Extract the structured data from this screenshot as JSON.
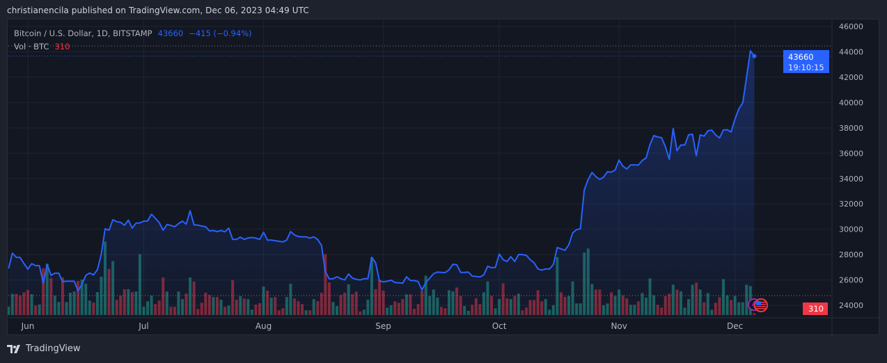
{
  "header": {
    "published_text": "christianencila published on TradingView.com, Dec 06, 2023 04:49 UTC"
  },
  "legend": {
    "symbol": "Bitcoin / U.S. Dollar, 1D, BITSTAMP",
    "last": "43660",
    "change": "−415 (−0.94%)",
    "volume_label": "Vol · BTC",
    "volume_value": "310"
  },
  "price_label": {
    "value": "43660",
    "countdown": "19:10:15"
  },
  "volume_badge": "310",
  "footer": {
    "brand": "TradingView"
  },
  "colors": {
    "line": "#2962ff",
    "up_volume": "#22ab94",
    "down_volume": "#f23645",
    "background": "#131722",
    "price_badge": "#2962ff",
    "volume_badge": "#f23645"
  },
  "icons": [
    "earnings-event-icon",
    "us-flag-economic-event-icon",
    "tradingview-logo-icon"
  ],
  "chart_data": {
    "type": "area",
    "title": "Bitcoin / U.S. Dollar, 1D, BITSTAMP",
    "ylim": [
      23000,
      47000
    ],
    "y_ticks": [
      "46000",
      "44000",
      "42000",
      "40000",
      "38000",
      "36000",
      "34000",
      "32000",
      "30000",
      "28000",
      "26000",
      "24000"
    ],
    "x_ticks": [
      {
        "label": "Jun",
        "date": "2023-06-01"
      },
      {
        "label": "Jul",
        "date": "2023-07-01"
      },
      {
        "label": "Aug",
        "date": "2023-08-01"
      },
      {
        "label": "Sep",
        "date": "2023-09-01"
      },
      {
        "label": "Oct",
        "date": "2023-10-01"
      },
      {
        "label": "Nov",
        "date": "2023-11-01"
      },
      {
        "label": "Dec",
        "date": "2023-12-01"
      }
    ],
    "grid": true,
    "series": [
      {
        "name": "Bitcoin / U.S. Dollar",
        "type": "line",
        "x": [
          "2023-05-27",
          "2023-05-28",
          "2023-05-29",
          "2023-05-30",
          "2023-05-31",
          "2023-06-01",
          "2023-06-02",
          "2023-06-03",
          "2023-06-04",
          "2023-06-05",
          "2023-06-06",
          "2023-06-07",
          "2023-06-08",
          "2023-06-09",
          "2023-06-10",
          "2023-06-11",
          "2023-06-12",
          "2023-06-13",
          "2023-06-14",
          "2023-06-15",
          "2023-06-16",
          "2023-06-17",
          "2023-06-18",
          "2023-06-19",
          "2023-06-20",
          "2023-06-21",
          "2023-06-22",
          "2023-06-23",
          "2023-06-24",
          "2023-06-25",
          "2023-06-26",
          "2023-06-27",
          "2023-06-28",
          "2023-06-29",
          "2023-06-30",
          "2023-07-01",
          "2023-07-02",
          "2023-07-03",
          "2023-07-04",
          "2023-07-05",
          "2023-07-06",
          "2023-07-07",
          "2023-07-08",
          "2023-07-09",
          "2023-07-10",
          "2023-07-11",
          "2023-07-12",
          "2023-07-13",
          "2023-07-14",
          "2023-07-15",
          "2023-07-16",
          "2023-07-17",
          "2023-07-18",
          "2023-07-19",
          "2023-07-20",
          "2023-07-21",
          "2023-07-22",
          "2023-07-23",
          "2023-07-24",
          "2023-07-25",
          "2023-07-26",
          "2023-07-27",
          "2023-07-28",
          "2023-07-29",
          "2023-07-30",
          "2023-07-31",
          "2023-08-01",
          "2023-08-02",
          "2023-08-03",
          "2023-08-04",
          "2023-08-05",
          "2023-08-06",
          "2023-08-07",
          "2023-08-08",
          "2023-08-09",
          "2023-08-10",
          "2023-08-11",
          "2023-08-12",
          "2023-08-13",
          "2023-08-14",
          "2023-08-15",
          "2023-08-16",
          "2023-08-17",
          "2023-08-18",
          "2023-08-19",
          "2023-08-20",
          "2023-08-21",
          "2023-08-22",
          "2023-08-23",
          "2023-08-24",
          "2023-08-25",
          "2023-08-26",
          "2023-08-27",
          "2023-08-28",
          "2023-08-29",
          "2023-08-30",
          "2023-08-31",
          "2023-09-01",
          "2023-09-02",
          "2023-09-03",
          "2023-09-04",
          "2023-09-05",
          "2023-09-06",
          "2023-09-07",
          "2023-09-08",
          "2023-09-09",
          "2023-09-10",
          "2023-09-11",
          "2023-09-12",
          "2023-09-13",
          "2023-09-14",
          "2023-09-15",
          "2023-09-16",
          "2023-09-17",
          "2023-09-18",
          "2023-09-19",
          "2023-09-20",
          "2023-09-21",
          "2023-09-22",
          "2023-09-23",
          "2023-09-24",
          "2023-09-25",
          "2023-09-26",
          "2023-09-27",
          "2023-09-28",
          "2023-09-29",
          "2023-09-30",
          "2023-10-01",
          "2023-10-02",
          "2023-10-03",
          "2023-10-04",
          "2023-10-05",
          "2023-10-06",
          "2023-10-07",
          "2023-10-08",
          "2023-10-09",
          "2023-10-10",
          "2023-10-11",
          "2023-10-12",
          "2023-10-13",
          "2023-10-14",
          "2023-10-15",
          "2023-10-16",
          "2023-10-17",
          "2023-10-18",
          "2023-10-19",
          "2023-10-20",
          "2023-10-21",
          "2023-10-22",
          "2023-10-23",
          "2023-10-24",
          "2023-10-25",
          "2023-10-26",
          "2023-10-27",
          "2023-10-28",
          "2023-10-29",
          "2023-10-30",
          "2023-10-31",
          "2023-11-01",
          "2023-11-02",
          "2023-11-03",
          "2023-11-04",
          "2023-11-05",
          "2023-11-06",
          "2023-11-07",
          "2023-11-08",
          "2023-11-09",
          "2023-11-10",
          "2023-11-11",
          "2023-11-12",
          "2023-11-13",
          "2023-11-14",
          "2023-11-15",
          "2023-11-16",
          "2023-11-17",
          "2023-11-18",
          "2023-11-19",
          "2023-11-20",
          "2023-11-21",
          "2023-11-22",
          "2023-11-23",
          "2023-11-24",
          "2023-11-25",
          "2023-11-26",
          "2023-11-27",
          "2023-11-28",
          "2023-11-29",
          "2023-11-30",
          "2023-12-01",
          "2023-12-02",
          "2023-12-03",
          "2023-12-04",
          "2023-12-05",
          "2023-12-06"
        ],
        "values": [
          26910,
          28120,
          27790,
          27770,
          27290,
          26850,
          27290,
          27130,
          27130,
          25760,
          27220,
          26360,
          26530,
          26530,
          25870,
          25900,
          25900,
          25900,
          25150,
          25650,
          26360,
          26550,
          26400,
          26800,
          28010,
          30040,
          29930,
          30750,
          30600,
          30550,
          30310,
          30720,
          30090,
          30480,
          30500,
          30640,
          30650,
          31190,
          30860,
          30530,
          29930,
          30370,
          30300,
          30200,
          30450,
          30640,
          30400,
          31460,
          30350,
          30320,
          30250,
          30200,
          29870,
          29900,
          29820,
          29900,
          29800,
          30090,
          29210,
          29200,
          29380,
          29200,
          29320,
          29350,
          29300,
          29200,
          29760,
          29150,
          29150,
          29100,
          29050,
          29000,
          29150,
          29820,
          29550,
          29430,
          29400,
          29400,
          29300,
          29400,
          29200,
          28720,
          26640,
          26090,
          26100,
          26250,
          26100,
          26000,
          26470,
          26150,
          26050,
          26000,
          26100,
          26100,
          27790,
          27350,
          25930,
          25850,
          25900,
          25980,
          25800,
          25780,
          25750,
          26250,
          25960,
          25950,
          25880,
          25210,
          25800,
          26150,
          26500,
          26620,
          26600,
          26580,
          26800,
          27240,
          27200,
          26600,
          26600,
          26620,
          26300,
          26280,
          26240,
          26400,
          27080,
          26970,
          26990,
          28050,
          27600,
          27460,
          27840,
          27460,
          28010,
          28000,
          27950,
          27600,
          27370,
          26870,
          26780,
          26870,
          26870,
          27220,
          28560,
          28450,
          28340,
          28770,
          29710,
          29970,
          30040,
          33110,
          33930,
          34480,
          34150,
          33930,
          34110,
          34540,
          34500,
          34680,
          35460,
          34970,
          34760,
          35080,
          35080,
          35060,
          35420,
          35630,
          36670,
          37390,
          37280,
          37230,
          36500,
          35520,
          37940,
          36200,
          36650,
          36650,
          37450,
          37500,
          35800,
          37450,
          37350,
          37770,
          37820,
          37440,
          37200,
          37830,
          37850,
          37680,
          38700,
          39500,
          39970,
          42000,
          44080,
          43660
        ]
      },
      {
        "name": "Vol · BTC",
        "type": "bar",
        "values": [
          1400,
          3570,
          3570,
          3290,
          3850,
          4240,
          3540,
          1610,
          1790,
          7950,
          8720,
          6270,
          3290,
          2210,
          6370,
          2210,
          3780,
          3990,
          5780,
          6020,
          5320,
          2450,
          2100,
          3890,
          6510,
          12460,
          7810,
          9140,
          2590,
          3290,
          4380,
          4380,
          3890,
          3990,
          10330,
          1400,
          2350,
          3290,
          1860,
          2450,
          6370,
          3990,
          1400,
          1400,
          3990,
          2700,
          3640,
          6370,
          5670,
          1020,
          2100,
          3780,
          3400,
          3050,
          3050,
          2590,
          1400,
          1610,
          5920,
          2590,
          3190,
          2800,
          2700,
          910,
          1750,
          2000,
          4830,
          4130,
          2940,
          3050,
          810,
          1160,
          3050,
          5320,
          2800,
          2350,
          1860,
          810,
          810,
          2700,
          2350,
          3780,
          10330,
          5530,
          2210,
          1510,
          3400,
          3780,
          5220,
          3540,
          3990,
          600,
          910,
          2590,
          9770,
          4380,
          5920,
          4130,
          1260,
          1650,
          2320,
          2080,
          2710,
          3500,
          3500,
          1060,
          1850,
          4130,
          6680,
          3220,
          4320,
          2950,
          1380,
          1140,
          4210,
          4010,
          4680,
          3220,
          1530,
          710,
          1730,
          2830,
          1850,
          3850,
          5700,
          3220,
          1140,
          2710,
          5380,
          2830,
          2710,
          3220,
          3620,
          790,
          1260,
          2550,
          2550,
          4210,
          2320,
          2710,
          900,
          1650,
          9830,
          3850,
          3070,
          3220,
          5700,
          1970,
          1970,
          10610,
          11280,
          5270,
          4320,
          4320,
          1650,
          1970,
          3850,
          3220,
          4320,
          3340,
          2830,
          1730,
          1730,
          2320,
          3730,
          2950,
          6210,
          3340,
          1730,
          1260,
          3220,
          3620,
          5150,
          4320,
          4010,
          1260,
          2710,
          5150,
          5500,
          4320,
          2160,
          3730,
          900,
          2080,
          3030,
          6090,
          3340,
          2550,
          3220,
          2160,
          2160,
          5150,
          4910,
          310
        ]
      }
    ],
    "last_price": 43660,
    "legend_position": "top-left"
  }
}
